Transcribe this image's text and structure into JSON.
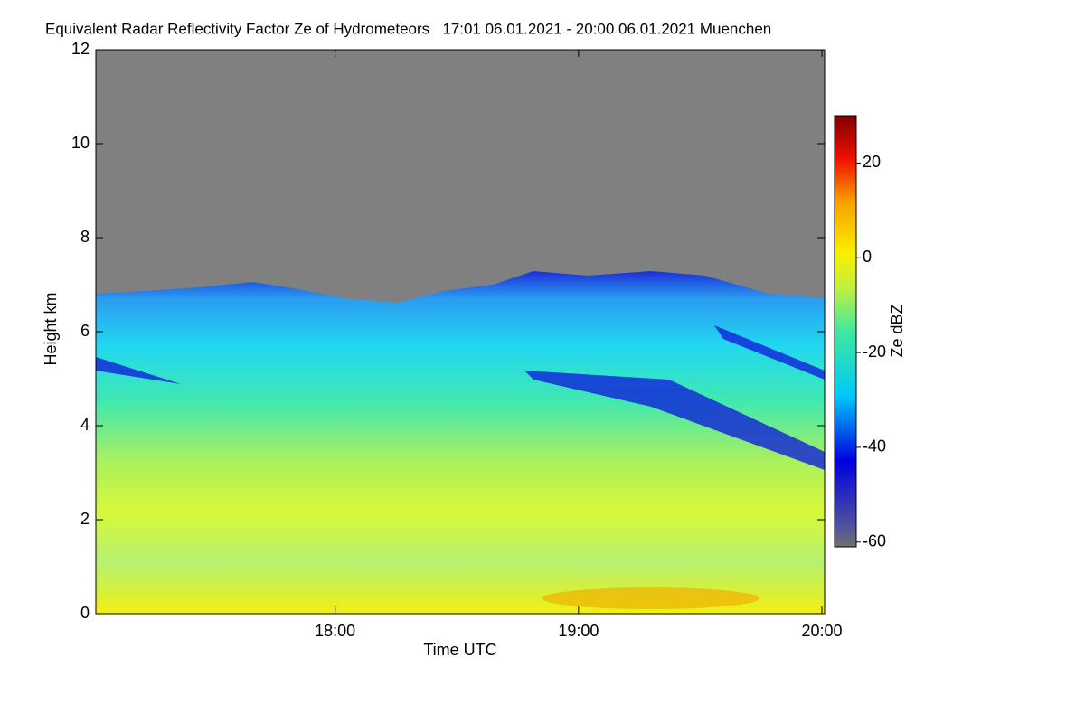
{
  "chart_data": {
    "type": "heatmap",
    "title": "Equivalent Radar Reflectivity Factor Ze of Hydrometeors   17:01 06.01.2021 - 20:00 06.01.2021 Muenchen",
    "x_label": "Time UTC",
    "y_label": "Height km",
    "xlim": [
      "17:01",
      "20:00"
    ],
    "xticks": [
      "18:00",
      "19:00",
      "20:00"
    ],
    "ylim": [
      0,
      12
    ],
    "yticks": [
      0,
      2,
      4,
      6,
      8,
      10,
      12
    ],
    "colorbar": {
      "label": "Ze dBZ",
      "lim": [
        -61,
        30
      ],
      "ticks": [
        -60,
        -40,
        -20,
        0,
        20
      ]
    }
  }
}
